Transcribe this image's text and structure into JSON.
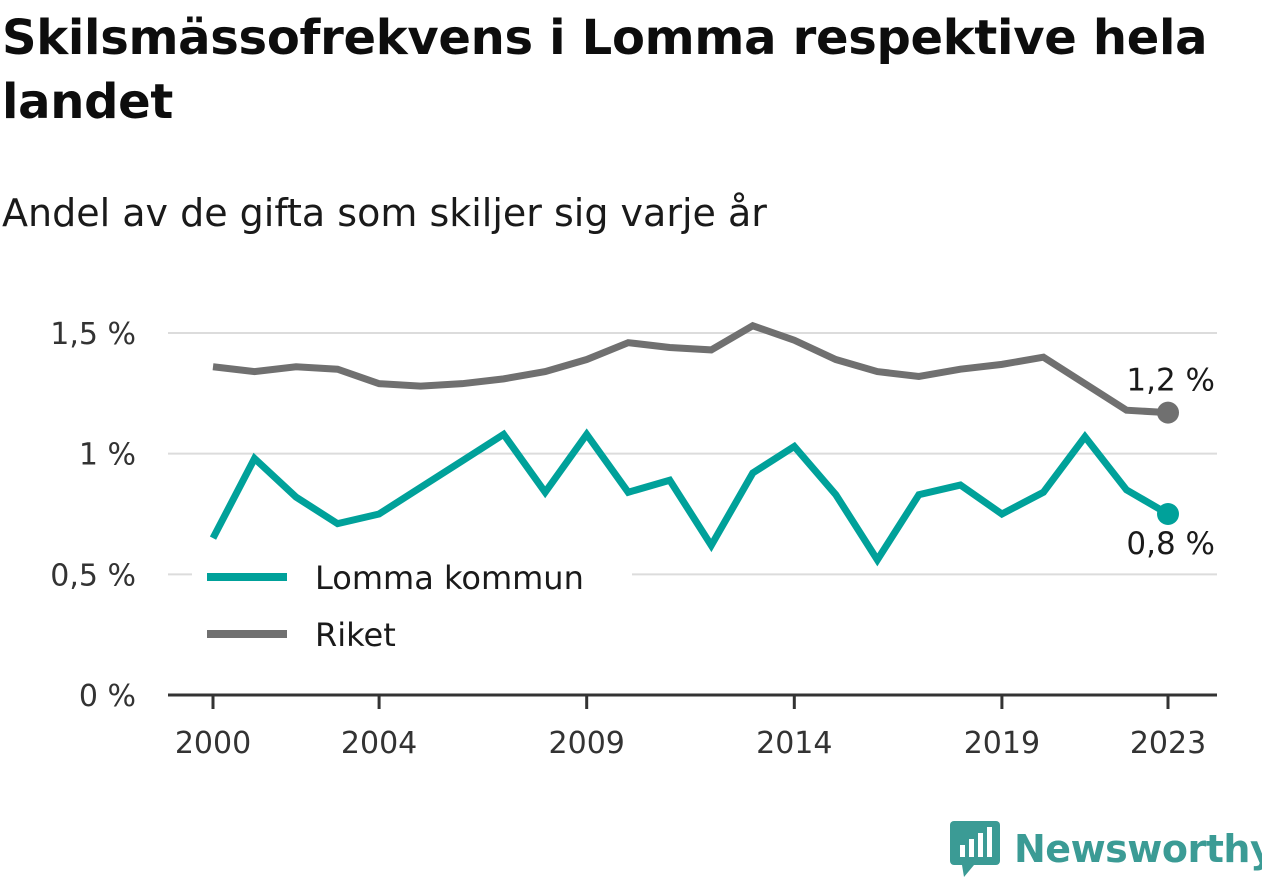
{
  "title": "Skilsmässofrekvens i Lomma respektive hela landet",
  "subtitle": "Andel av de gifta som skiljer sig varje år",
  "brand": {
    "name": "Newsworthy",
    "icon": "newsworthy-logo-icon",
    "color": "#3b9b95"
  },
  "chart_data": {
    "type": "line",
    "title": "Skilsmässofrekvens i Lomma respektive hela landet",
    "subtitle": "Andel av de gifta som skiljer sig varje år",
    "xlabel": "",
    "ylabel": "",
    "x": [
      2000,
      2001,
      2002,
      2003,
      2004,
      2005,
      2006,
      2007,
      2008,
      2009,
      2010,
      2011,
      2012,
      2013,
      2014,
      2015,
      2016,
      2017,
      2018,
      2019,
      2020,
      2021,
      2022,
      2023
    ],
    "x_ticks": [
      {
        "value": 2000,
        "label": "2000"
      },
      {
        "value": 2004,
        "label": "2004"
      },
      {
        "value": 2009,
        "label": "2009"
      },
      {
        "value": 2014,
        "label": "2014"
      },
      {
        "value": 2019,
        "label": "2019"
      },
      {
        "value": 2023,
        "label": "2023"
      }
    ],
    "y_ticks": [
      {
        "value": 0,
        "label": "0 %"
      },
      {
        "value": 0.5,
        "label": "0,5 %"
      },
      {
        "value": 1.0,
        "label": "1 %"
      },
      {
        "value": 1.5,
        "label": "1,5 %"
      }
    ],
    "xlim": [
      2000,
      2023
    ],
    "ylim": [
      0,
      1.5
    ],
    "grid": true,
    "legend_position": "bottom-left",
    "series": [
      {
        "name": "Lomma kommun",
        "color": "#00a19a",
        "values": [
          0.65,
          0.98,
          0.82,
          0.71,
          0.75,
          0.86,
          0.97,
          1.08,
          0.84,
          1.08,
          0.84,
          0.89,
          0.62,
          0.92,
          1.03,
          0.83,
          0.56,
          0.83,
          0.87,
          0.75,
          0.84,
          1.07,
          0.85,
          0.75
        ],
        "end_label": "0,8 %"
      },
      {
        "name": "Riket",
        "color": "#707070",
        "values": [
          1.36,
          1.34,
          1.36,
          1.35,
          1.29,
          1.28,
          1.29,
          1.31,
          1.34,
          1.39,
          1.46,
          1.44,
          1.43,
          1.53,
          1.47,
          1.39,
          1.34,
          1.32,
          1.35,
          1.37,
          1.4,
          1.29,
          1.18,
          1.17
        ],
        "end_label": "1,2 %"
      }
    ]
  }
}
